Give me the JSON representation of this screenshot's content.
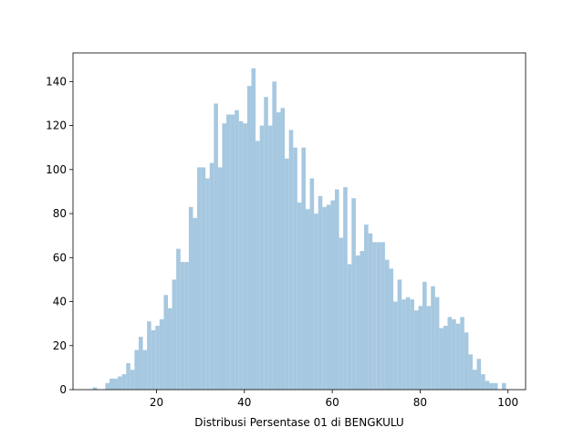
{
  "chart_data": {
    "type": "bar",
    "title": "",
    "xlabel": "Distribusi Persentase 01 di BENGKULU",
    "ylabel": "",
    "xlim": [
      1,
      104
    ],
    "ylim": [
      0,
      153
    ],
    "x_ticks": [
      20,
      40,
      60,
      80,
      100
    ],
    "y_ticks": [
      0,
      20,
      40,
      60,
      80,
      100,
      120,
      140
    ],
    "grid": false,
    "bar_color": "#a6c8e0",
    "bin_start": 5.5,
    "bin_width": 0.95,
    "values": [
      1,
      0,
      0,
      3,
      5,
      5,
      6,
      7,
      12,
      9,
      18,
      24,
      18,
      31,
      27,
      29,
      32,
      43,
      37,
      50,
      64,
      58,
      58,
      83,
      78,
      101,
      101,
      96,
      103,
      130,
      101,
      121,
      125,
      125,
      127,
      122,
      121,
      138,
      146,
      113,
      120,
      133,
      120,
      140,
      126,
      128,
      105,
      118,
      110,
      85,
      110,
      82,
      96,
      80,
      88,
      83,
      84,
      86,
      91,
      69,
      92,
      57,
      87,
      61,
      63,
      75,
      71,
      67,
      67,
      67,
      59,
      55,
      40,
      50,
      41,
      42,
      41,
      36,
      38,
      49,
      38,
      47,
      42,
      28,
      29,
      33,
      32,
      30,
      33,
      26,
      16,
      9,
      14,
      7,
      4,
      3,
      3,
      0,
      3
    ]
  }
}
